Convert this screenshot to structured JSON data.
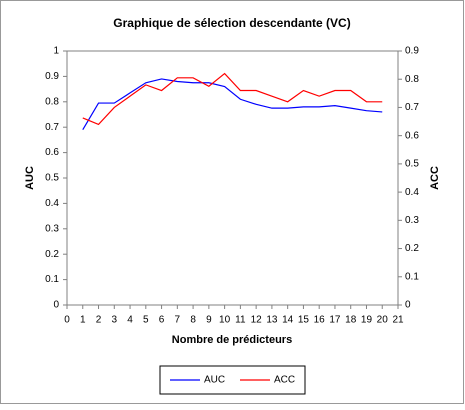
{
  "chart_data": {
    "type": "line",
    "title": "Graphique de sélection descendante (VC)",
    "x_label": "Nombre de prédicteurs",
    "y_label": "AUC",
    "y2_label": "ACC",
    "x": [
      1,
      2,
      3,
      4,
      5,
      6,
      7,
      8,
      9,
      10,
      11,
      12,
      13,
      14,
      15,
      16,
      17,
      18,
      19,
      20
    ],
    "series": [
      {
        "name": "AUC",
        "color": "#0000ff",
        "values": [
          0.69,
          0.795,
          0.795,
          0.835,
          0.875,
          0.89,
          0.88,
          0.875,
          0.875,
          0.86,
          0.81,
          0.79,
          0.775,
          0.775,
          0.78,
          0.78,
          0.785,
          0.775,
          0.765,
          0.76
        ]
      },
      {
        "name": "ACC",
        "color": "#ff0000",
        "axis": "y2",
        "values": [
          0.663,
          0.64,
          0.7,
          0.74,
          0.78,
          0.76,
          0.805,
          0.805,
          0.775,
          0.82,
          0.76,
          0.76,
          0.74,
          0.72,
          0.76,
          0.74,
          0.76,
          0.76,
          0.72,
          0.72
        ]
      }
    ],
    "xlim": [
      0,
      21
    ],
    "xticks": [
      0,
      1,
      2,
      3,
      4,
      5,
      6,
      7,
      8,
      9,
      10,
      11,
      12,
      13,
      14,
      15,
      16,
      17,
      18,
      19,
      20,
      21
    ],
    "ylim": [
      0,
      1
    ],
    "yticks": [
      0,
      0.1,
      0.2,
      0.3,
      0.4,
      0.5,
      0.6,
      0.7,
      0.8,
      0.9,
      1
    ],
    "y2lim": [
      0,
      0.9
    ],
    "y2ticks": [
      0,
      0.1,
      0.2,
      0.3,
      0.4,
      0.5,
      0.6,
      0.7,
      0.8,
      0.9
    ],
    "legend": "bottom"
  }
}
